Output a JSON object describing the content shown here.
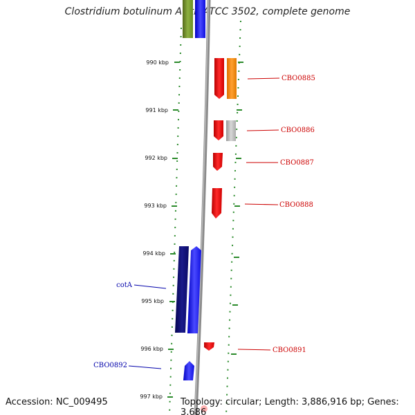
{
  "map": {
    "title": "Clostridium botulinum A str. ATCC 3502, complete genome",
    "accession": "Accession: NC_009495",
    "topology": "Topology: circular; Length: 3,886,916 bp; Genes: 3,686"
  },
  "scale_labels": [
    "990 kbp",
    "991 kbp",
    "992 kbp",
    "993 kbp",
    "994 kbp",
    "995 kbp",
    "996 kbp",
    "997 kbp"
  ],
  "gene_labels": [
    {
      "name": "CBO0885",
      "color": "#cc0000"
    },
    {
      "name": "CBO0886",
      "color": "#cc0000"
    },
    {
      "name": "CBO0887",
      "color": "#cc0000"
    },
    {
      "name": "CBO0888",
      "color": "#cc0000"
    },
    {
      "name": "cotA",
      "color": "#0000aa"
    },
    {
      "name": "CBO0891",
      "color": "#cc0000"
    },
    {
      "name": "CBO0892",
      "color": "#0000aa"
    }
  ],
  "colors": {
    "backbone": "#888888",
    "dotted_track": "#2a8a2a",
    "red": "#ee1111",
    "orange": "#ff8800",
    "gray": "#aaaaaa",
    "blue": "#1111ee",
    "navy": "#0b0b6e",
    "olive": "#6b8e23"
  }
}
